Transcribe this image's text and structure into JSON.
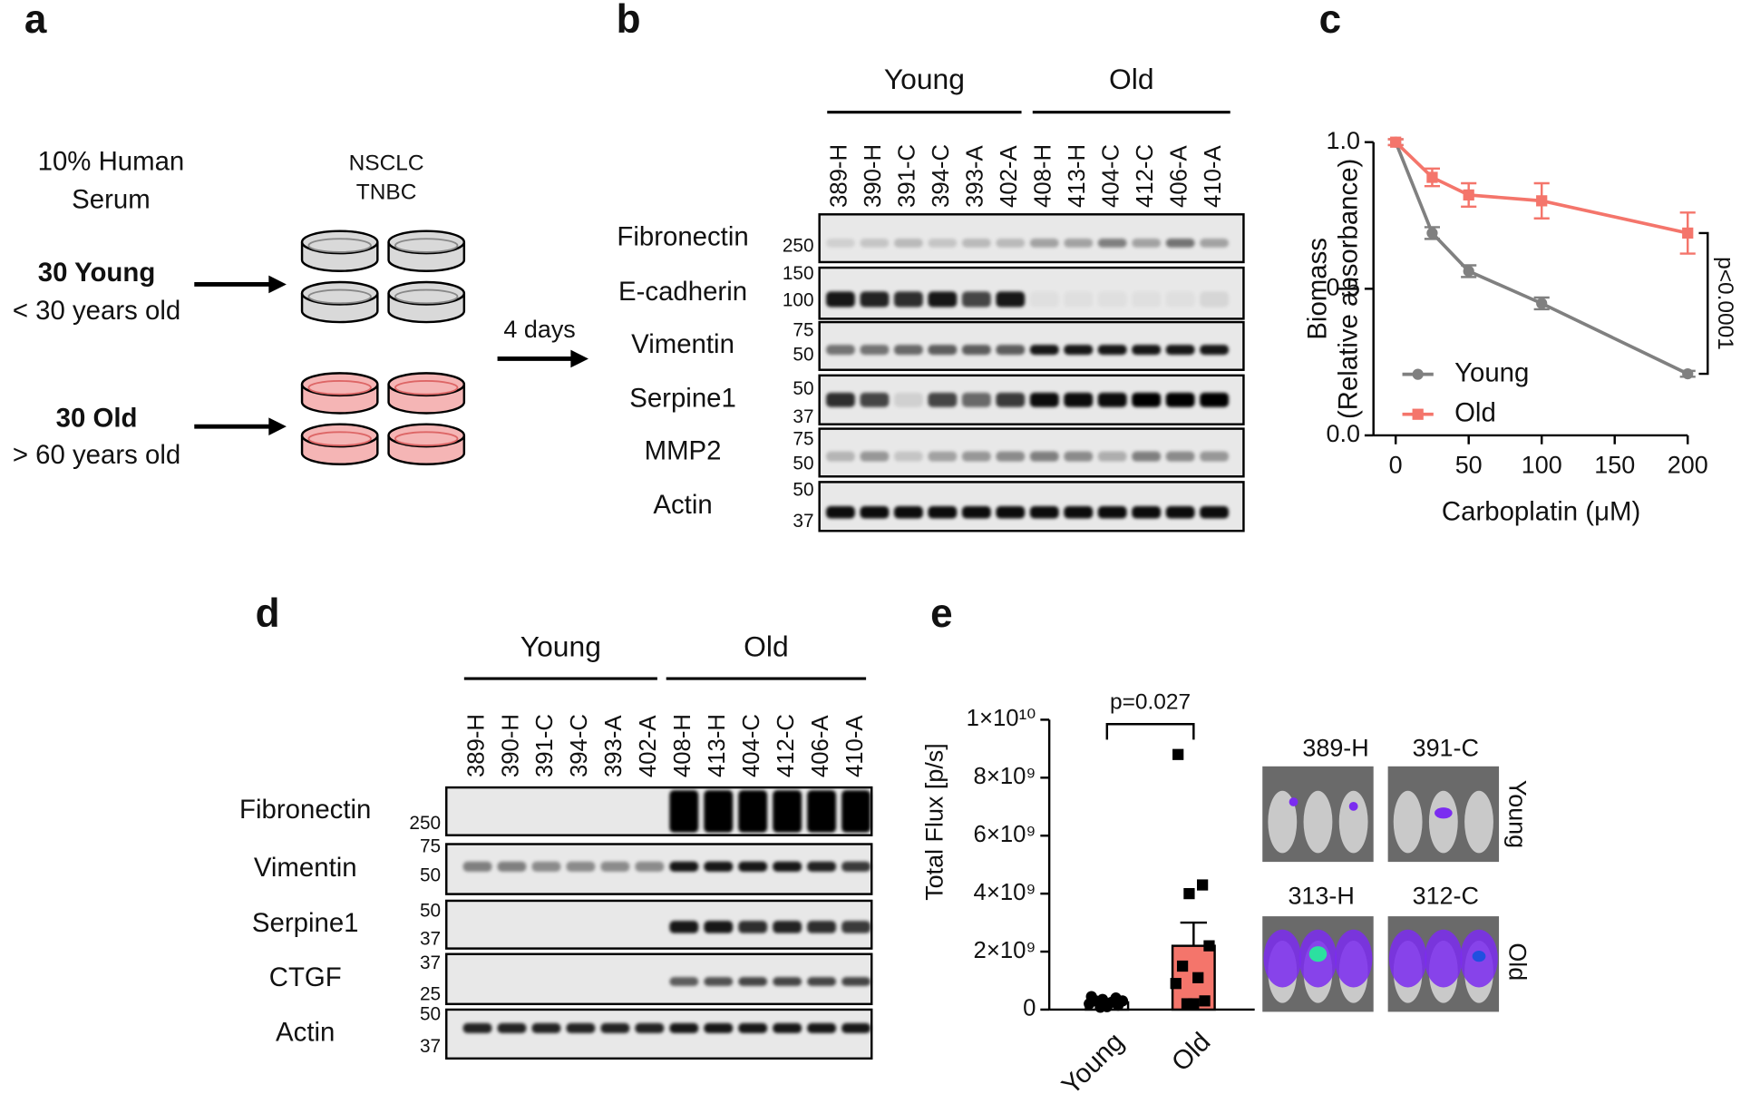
{
  "panels": {
    "a": {
      "label": "a",
      "serum": [
        "10% Human",
        "Serum"
      ],
      "cells": [
        "NSCLC",
        "TNBC"
      ],
      "young": {
        "title": "30 Young",
        "subtitle": "< 30 years old"
      },
      "old": {
        "title": "30 Old",
        "subtitle": "> 60 years old"
      },
      "arrow_label": "4 days"
    },
    "b": {
      "label": "b",
      "groups": [
        "Young",
        "Old"
      ],
      "samples": [
        "389-H",
        "390-H",
        "391-C",
        "394-C",
        "393-A",
        "402-A",
        "408-H",
        "413-H",
        "404-C",
        "412-C",
        "406-A",
        "410-A"
      ],
      "blots": [
        {
          "name": "Fibronectin",
          "markers": [
            250
          ]
        },
        {
          "name": "E-cadherin",
          "markers": [
            150,
            100
          ]
        },
        {
          "name": "Vimentin",
          "markers": [
            75,
            50
          ]
        },
        {
          "name": "Serpine1",
          "markers": [
            50,
            37
          ]
        },
        {
          "name": "MMP2",
          "markers": [
            75,
            50
          ]
        },
        {
          "name": "Actin",
          "markers": [
            50,
            37
          ]
        }
      ]
    },
    "c": {
      "label": "c"
    },
    "d": {
      "label": "d",
      "groups": [
        "Young",
        "Old"
      ],
      "samples": [
        "389-H",
        "390-H",
        "391-C",
        "394-C",
        "393-A",
        "402-A",
        "408-H",
        "413-H",
        "404-C",
        "412-C",
        "406-A",
        "410-A"
      ],
      "blots": [
        {
          "name": "Fibronectin",
          "markers": [
            250
          ]
        },
        {
          "name": "Vimentin",
          "markers": [
            75,
            50
          ]
        },
        {
          "name": "Serpine1",
          "markers": [
            50,
            37
          ]
        },
        {
          "name": "CTGF",
          "markers": [
            37,
            25
          ]
        },
        {
          "name": "Actin",
          "markers": [
            50,
            37
          ]
        }
      ]
    },
    "e": {
      "label": "e",
      "images": [
        "389-H",
        "391-C",
        "313-H",
        "312-C"
      ],
      "rows": [
        "Young",
        "Old"
      ]
    }
  },
  "chart_data": [
    {
      "type": "line",
      "xlabel": "Carboplatin (μM)",
      "ylabel": [
        "Biomass",
        "(Relative absorbance)"
      ],
      "x": [
        0,
        25,
        50,
        100,
        200
      ],
      "series": [
        {
          "name": "Young",
          "color": "#808080",
          "values": [
            1.0,
            0.69,
            0.56,
            0.45,
            0.21
          ],
          "errors": [
            0.01,
            0.02,
            0.02,
            0.02,
            0.01
          ]
        },
        {
          "name": "Old",
          "color": "#f4756b",
          "values": [
            1.0,
            0.88,
            0.82,
            0.8,
            0.69
          ],
          "errors": [
            0.01,
            0.03,
            0.04,
            0.06,
            0.07
          ]
        }
      ],
      "xlim": [
        0,
        200
      ],
      "xticks": [
        0,
        50,
        100,
        150,
        200
      ],
      "ylim": [
        0,
        1.0
      ],
      "yticks": [
        {
          "value": 0,
          "label": "0.0"
        },
        {
          "value": 0.5,
          "label": "0.5"
        },
        {
          "value": 1.0,
          "label": "1.0"
        }
      ],
      "legend": "lower left",
      "annotation": "p<0.0001"
    },
    {
      "type": "bar",
      "ylabel": "Total Flux [p/s]",
      "categories": [
        "Young",
        "Old"
      ],
      "values": [
        250000000,
        2200000000
      ],
      "errors": [
        100000000,
        800000000
      ],
      "colors": [
        "#ffffff",
        "#f4756b"
      ],
      "points": [
        [
          450000000,
          400000000,
          350000000,
          300000000,
          300000000,
          250000000,
          200000000,
          150000000,
          100000000,
          80000000
        ],
        [
          8800000000,
          4300000000,
          4000000000,
          2200000000,
          1500000000,
          1100000000,
          900000000,
          300000000,
          200000000,
          200000000
        ]
      ],
      "ylim": [
        0,
        10000000000
      ],
      "yticks": [
        0,
        {
          "value": 2000000000,
          "label": "2×10⁹"
        },
        {
          "value": 4000000000,
          "label": "4×10⁹"
        },
        {
          "value": 6000000000,
          "label": "6×10⁹"
        },
        {
          "value": 8000000000,
          "label": "8×10⁹"
        },
        {
          "value": 10000000000,
          "label": "1×10¹⁰"
        }
      ],
      "annotation": "p=0.027"
    }
  ]
}
